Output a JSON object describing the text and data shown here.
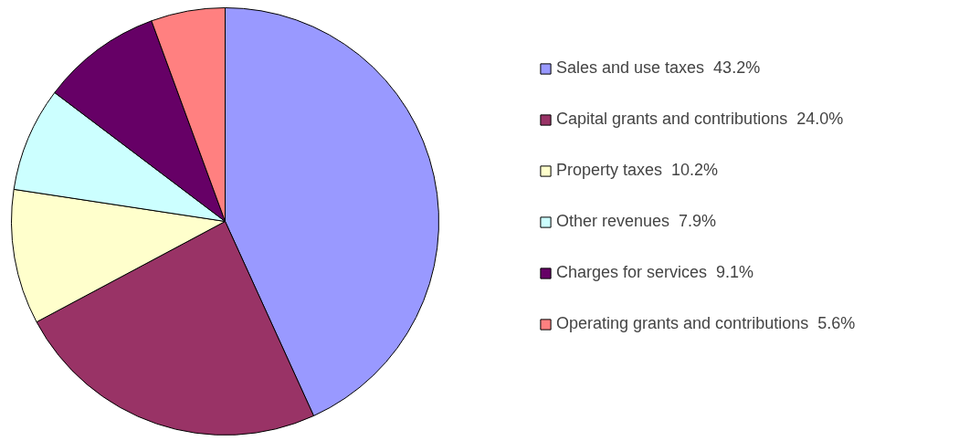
{
  "chart_data": {
    "type": "pie",
    "categories": [
      "Sales and use taxes",
      "Capital grants and contributions",
      "Property taxes",
      "Other revenues",
      "Charges for services",
      "Operating grants and contributions"
    ],
    "values": [
      43.2,
      24.0,
      10.2,
      7.9,
      9.1,
      5.6
    ],
    "value_labels": [
      "43.2%",
      "24.0%",
      "10.2%",
      "7.9%",
      "9.1%",
      "5.6%"
    ],
    "colors": [
      "#9999ff",
      "#993366",
      "#ffffcc",
      "#ccffff",
      "#660066",
      "#ff8080"
    ],
    "legend": "right"
  }
}
